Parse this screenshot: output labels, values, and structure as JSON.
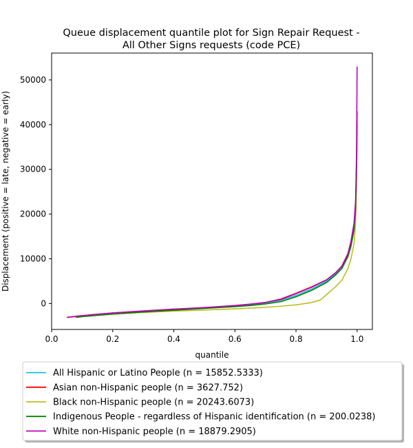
{
  "chart_data": {
    "type": "line",
    "title": "Queue displacement quantile plot for Sign Repair Request -\nAll Other Signs  requests (code PCE)",
    "xlabel": "quantile",
    "ylabel": "Displacement (positive = late, negative = early)",
    "xlim": [
      0.0,
      1.05
    ],
    "ylim": [
      -5800,
      56000
    ],
    "xticks": [
      0.0,
      0.2,
      0.4,
      0.6,
      0.8,
      1.0
    ],
    "xtick_labels": [
      "0.0",
      "0.2",
      "0.4",
      "0.6",
      "0.8",
      "1.0"
    ],
    "yticks": [
      0,
      10000,
      20000,
      30000,
      40000,
      50000
    ],
    "ytick_labels": [
      "0",
      "10000",
      "20000",
      "30000",
      "40000",
      "50000"
    ],
    "grid": false,
    "legend_position": "below",
    "series": [
      {
        "name": "All Hispanic or Latino People (n = 15852.5333)",
        "color": "#17becf",
        "x": [
          0.05,
          0.1,
          0.2,
          0.3,
          0.4,
          0.5,
          0.6,
          0.65,
          0.7,
          0.75,
          0.8,
          0.85,
          0.9,
          0.93,
          0.95,
          0.97,
          0.98,
          0.99,
          0.995,
          0.998,
          1.0
        ],
        "y": [
          -3100,
          -2700,
          -2100,
          -1700,
          -1300,
          -950,
          -500,
          -250,
          100,
          700,
          1800,
          3200,
          5000,
          6700,
          8200,
          11000,
          13500,
          17000,
          22000,
          30000,
          41000
        ]
      },
      {
        "name": "Asian non-Hispanic people (n = 3627.752)",
        "color": "#ff0000",
        "x": [
          0.05,
          0.1,
          0.2,
          0.3,
          0.4,
          0.5,
          0.6,
          0.65,
          0.7,
          0.75,
          0.8,
          0.85,
          0.9,
          0.93,
          0.95,
          0.97,
          0.98,
          0.99,
          0.995,
          0.998,
          1.0
        ],
        "y": [
          -3100,
          -2700,
          -2100,
          -1700,
          -1300,
          -950,
          -450,
          -150,
          250,
          1000,
          2300,
          3700,
          5300,
          6900,
          8300,
          11000,
          13500,
          17500,
          22500,
          31000,
          43000
        ]
      },
      {
        "name": "Black non-Hispanic people (n = 20243.6073)",
        "color": "#bcbd22",
        "x": [
          0.05,
          0.1,
          0.2,
          0.3,
          0.4,
          0.5,
          0.6,
          0.7,
          0.75,
          0.8,
          0.85,
          0.88,
          0.9,
          0.93,
          0.95,
          0.97,
          0.98,
          0.99,
          0.995,
          0.998,
          1.0
        ],
        "y": [
          -3100,
          -2900,
          -2400,
          -2000,
          -1700,
          -1450,
          -1200,
          -850,
          -600,
          -300,
          200,
          800,
          2000,
          3800,
          5200,
          7800,
          10000,
          13500,
          18000,
          26000,
          38000
        ]
      },
      {
        "name": "Indigenous People - regardless of Hispanic identification (n = 200.0238)",
        "color": "#008000",
        "x": [
          0.08,
          0.1,
          0.2,
          0.3,
          0.4,
          0.5,
          0.6,
          0.65,
          0.7,
          0.75,
          0.8,
          0.85,
          0.9,
          0.93,
          0.95,
          0.97,
          0.98,
          0.99,
          0.995,
          0.998,
          1.0
        ],
        "y": [
          -3100,
          -2950,
          -2350,
          -1900,
          -1500,
          -1100,
          -700,
          -450,
          -100,
          400,
          1500,
          2900,
          4700,
          6400,
          7800,
          10500,
          12800,
          16500,
          21000,
          29000,
          40000
        ]
      },
      {
        "name": "White non-Hispanic people (n = 18879.2905)",
        "color": "#bf00bf",
        "x": [
          0.05,
          0.1,
          0.2,
          0.3,
          0.4,
          0.5,
          0.6,
          0.65,
          0.7,
          0.75,
          0.8,
          0.85,
          0.9,
          0.93,
          0.95,
          0.97,
          0.98,
          0.99,
          0.995,
          0.998,
          1.0
        ],
        "y": [
          -3100,
          -2700,
          -2100,
          -1650,
          -1250,
          -900,
          -450,
          -150,
          250,
          900,
          2200,
          3600,
          5300,
          6900,
          8400,
          11200,
          14000,
          18000,
          23000,
          33000,
          53000
        ]
      }
    ]
  }
}
